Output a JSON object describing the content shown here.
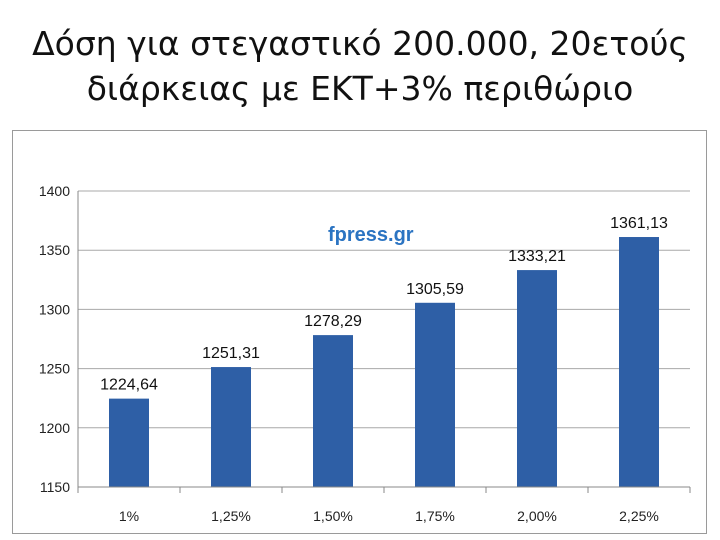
{
  "title": {
    "line1": "Δόση για στεγαστικό 200.000, 20ετούς",
    "line2": "διάρκειας με ΕΚΤ+3% περιθώριο"
  },
  "watermark": "fpress.gr",
  "chart_data": {
    "type": "bar",
    "categories": [
      "1%",
      "1,25%",
      "1,50%",
      "1,75%",
      "2,00%",
      "2,25%"
    ],
    "values": [
      1224.64,
      1251.31,
      1278.29,
      1305.59,
      1333.21,
      1361.13
    ],
    "data_labels": [
      "1224,64",
      "1251,31",
      "1278,29",
      "1305,59",
      "1333,21",
      "1361,13"
    ],
    "ylim": [
      1150,
      1400
    ],
    "yticks": [
      1150,
      1200,
      1250,
      1300,
      1350,
      1400
    ],
    "grid": true,
    "legend": "none",
    "bar_color": "#2e5fa6",
    "grid_color": "#a8a8a8"
  }
}
